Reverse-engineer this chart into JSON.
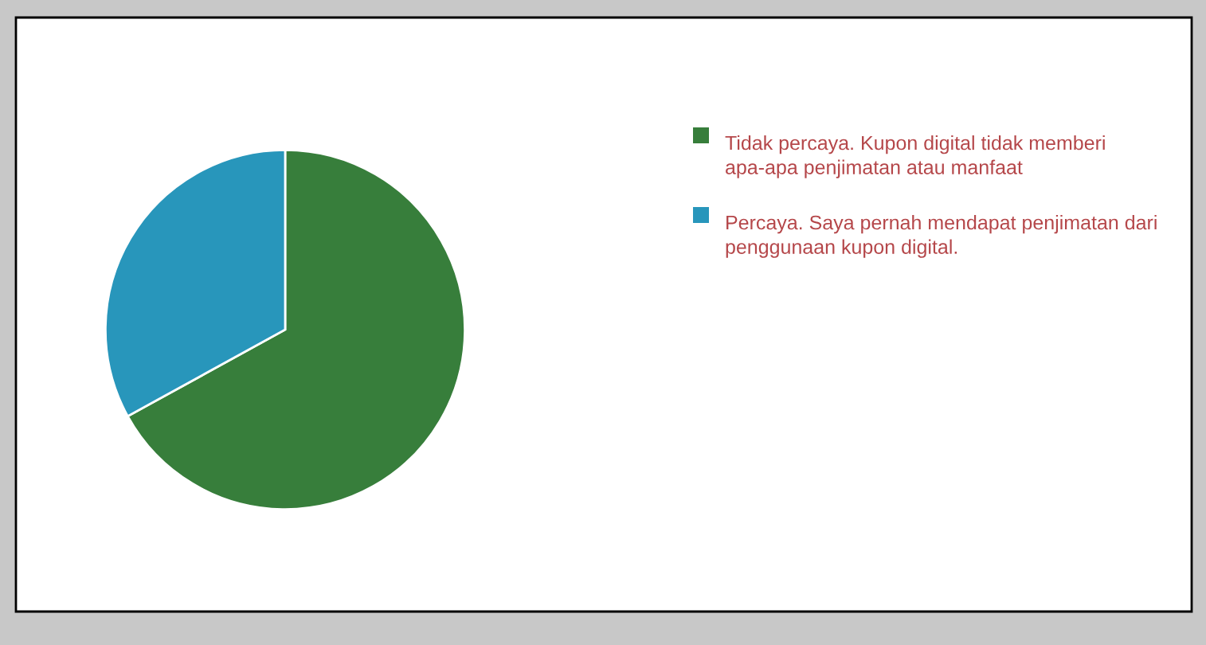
{
  "chart_data": {
    "type": "pie",
    "categories": [
      "Tidak percaya. Kupon digital tidak memberi apa-apa penjimatan atau manfaat",
      "Percaya. Saya pernah mendapat penjimatan dari penggunaan kupon digital."
    ],
    "values": [
      67,
      33
    ],
    "colors": [
      "#377e3b",
      "#2896bb"
    ],
    "legend": "right"
  }
}
